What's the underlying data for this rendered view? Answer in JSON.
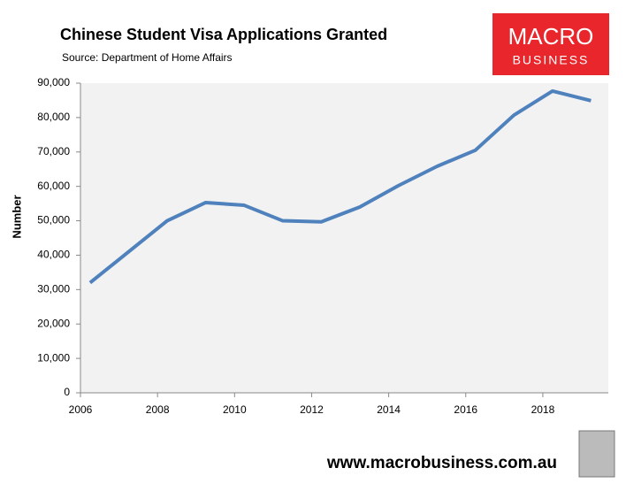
{
  "chart_data": {
    "type": "line",
    "title": "Chinese Student Visa Applications Granted",
    "subtitle": "Source: Department of Home Affairs",
    "y_label": "Number",
    "logo": {
      "line1": "MACRO",
      "line2": "BUSINESS"
    },
    "footer": "www.macrobusiness.com.au",
    "x": [
      2006.25,
      2007.25,
      2008.25,
      2009.25,
      2010.25,
      2011.25,
      2012.25,
      2013.25,
      2014.25,
      2015.25,
      2016.25,
      2017.25,
      2018.25,
      2019.25
    ],
    "series": [
      {
        "color": "#4f81bd",
        "values": [
          32000,
          41000,
          50000,
          55300,
          54500,
          50000,
          49700,
          54000,
          60200,
          65800,
          70500,
          80700,
          87700,
          84900
        ]
      }
    ],
    "xlim": [
      2006,
      2019.7
    ],
    "xticks": [
      2006,
      2008,
      2010,
      2012,
      2014,
      2016,
      2018
    ],
    "ylim": [
      0,
      90000
    ],
    "yticks": [
      0,
      {
        "value": 10000,
        "label": "10,000"
      },
      {
        "value": 20000,
        "label": "20,000"
      },
      {
        "value": 30000,
        "label": "30,000"
      },
      {
        "value": 40000,
        "label": "40,000"
      },
      {
        "value": 50000,
        "label": "50,000"
      },
      {
        "value": 60000,
        "label": "60,000"
      },
      {
        "value": 70000,
        "label": "70,000"
      },
      {
        "value": 80000,
        "label": "80,000"
      },
      {
        "value": 90000,
        "label": "90,000"
      }
    ],
    "grid": false
  }
}
